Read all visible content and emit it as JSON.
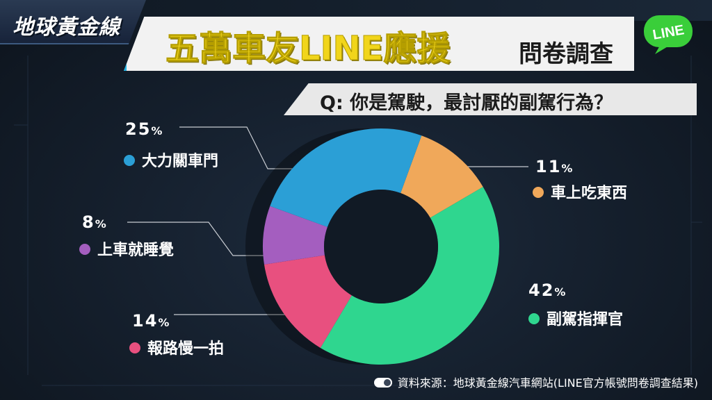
{
  "brand": {
    "logo_text": "地球黃金線"
  },
  "title": {
    "main": "五萬車友LINE應援",
    "sub": "問卷調查"
  },
  "badge": {
    "text": "LINE",
    "color": "#3ace3a"
  },
  "question": {
    "text": "Q: 你是駕駛，最討厭的副駕行為？"
  },
  "source": {
    "text": "資料來源：地球黃金線汽車網站(LINE官方帳號問卷調查結果)"
  },
  "chart_data": {
    "type": "pie",
    "variant": "donut",
    "unit": "%",
    "slices": [
      {
        "label": "車上吃東西",
        "value": 11,
        "color": "#f0a85a"
      },
      {
        "label": "副駕指揮官",
        "value": 42,
        "color": "#2fd68f"
      },
      {
        "label": "報路慢一拍",
        "value": 14,
        "color": "#e8507f"
      },
      {
        "label": "上車就睡覺",
        "value": 8,
        "color": "#a45ebf"
      },
      {
        "label": "大力關車門",
        "value": 25,
        "color": "#2b9fd6"
      }
    ]
  },
  "labels": {
    "s0_pct": "11",
    "s1_pct": "42",
    "s2_pct": "14",
    "s3_pct": "8",
    "s4_pct": "25",
    "pct_sign": "%"
  }
}
